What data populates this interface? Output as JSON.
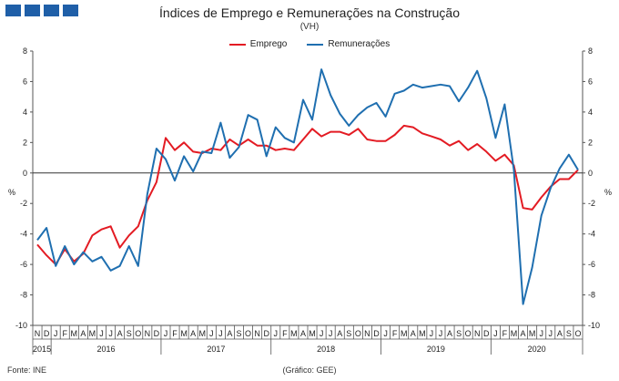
{
  "title": "Índices de Emprego  e Remunerações na Construção",
  "subtitle": "(VH)",
  "source": "Fonte: INE",
  "credit": "(Gráfico: GEE)",
  "colors": {
    "logo": "#1f5fa8"
  },
  "chart_data": {
    "type": "line",
    "ylabel_left": "%",
    "ylabel_right": "%",
    "ylim": [
      -10,
      8
    ],
    "yticks": [
      -10,
      -8,
      -6,
      -4,
      -2,
      0,
      2,
      4,
      6,
      8
    ],
    "grid": false,
    "legend_position": "top-center",
    "x_months": [
      "N",
      "D",
      "J",
      "F",
      "M",
      "A",
      "M",
      "J",
      "J",
      "A",
      "S",
      "O",
      "N",
      "D",
      "J",
      "F",
      "M",
      "A",
      "M",
      "J",
      "J",
      "A",
      "S",
      "O",
      "N",
      "D",
      "J",
      "F",
      "M",
      "A",
      "M",
      "J",
      "J",
      "A",
      "S",
      "O",
      "N",
      "D",
      "J",
      "F",
      "M",
      "A",
      "M",
      "J",
      "J",
      "A",
      "S",
      "O",
      "N",
      "D",
      "J",
      "F",
      "M",
      "A",
      "M",
      "J",
      "J",
      "A",
      "S",
      "O"
    ],
    "years": [
      {
        "label": "2015",
        "start": 0,
        "end": 1
      },
      {
        "label": "2016",
        "start": 2,
        "end": 13
      },
      {
        "label": "2017",
        "start": 14,
        "end": 25
      },
      {
        "label": "2018",
        "start": 26,
        "end": 37
      },
      {
        "label": "2019",
        "start": 38,
        "end": 49
      },
      {
        "label": "2020",
        "start": 50,
        "end": 59
      }
    ],
    "series": [
      {
        "name": "Emprego",
        "color": "#e31b23",
        "values": [
          -4.7,
          -5.4,
          -6.0,
          -5.0,
          -5.8,
          -5.3,
          -4.1,
          -3.7,
          -3.5,
          -4.9,
          -4.1,
          -3.5,
          -1.8,
          -0.6,
          2.3,
          1.5,
          2.0,
          1.4,
          1.3,
          1.6,
          1.5,
          2.2,
          1.8,
          2.2,
          1.8,
          1.8,
          1.5,
          1.6,
          1.5,
          2.2,
          2.9,
          2.4,
          2.7,
          2.7,
          2.5,
          2.9,
          2.2,
          2.1,
          2.1,
          2.5,
          3.1,
          3.0,
          2.6,
          2.4,
          2.2,
          1.8,
          2.1,
          1.5,
          1.9,
          1.4,
          0.8,
          1.2,
          0.5,
          -2.3,
          -2.4,
          -1.6,
          -0.9,
          -0.4,
          -0.4,
          0.2
        ]
      },
      {
        "name": "Remunerações",
        "color": "#1f6fb0",
        "values": [
          -4.4,
          -3.6,
          -6.1,
          -4.8,
          -6.0,
          -5.2,
          -5.8,
          -5.5,
          -6.4,
          -6.1,
          -4.8,
          -6.1,
          -1.4,
          1.6,
          0.9,
          -0.5,
          1.1,
          0.1,
          1.4,
          1.3,
          3.3,
          1.0,
          1.7,
          3.8,
          3.5,
          1.1,
          3.0,
          2.3,
          2.0,
          4.8,
          3.5,
          6.8,
          5.1,
          3.9,
          3.1,
          3.8,
          4.3,
          4.6,
          3.7,
          5.2,
          5.4,
          5.8,
          5.6,
          5.7,
          5.8,
          5.7,
          4.7,
          5.6,
          6.7,
          4.9,
          2.3,
          4.5,
          0.2,
          -8.6,
          -6.2,
          -2.8,
          -1.0,
          0.3,
          1.2,
          0.2
        ]
      }
    ]
  }
}
